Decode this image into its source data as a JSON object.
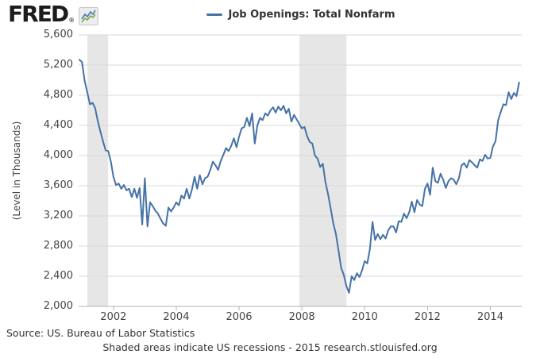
{
  "header": {
    "logo_text": "FRED",
    "logo_reg_mark": "®",
    "legend": {
      "label": "Job Openings: Total Nonfarm"
    }
  },
  "footer": {
    "source": "Source: US. Bureau of Labor Statistics",
    "note": "Shaded areas indicate US recessions - 2015 research.stlouisfed.org"
  },
  "colors": {
    "series_line": "#4572a7",
    "recession_band": "#e6e6e6",
    "gridline": "#d9d9d9",
    "axis_line": "#b3b3b3",
    "tick_mark": "#b3b3b3",
    "tick_text": "#444444",
    "footer_text": "#333333",
    "logo_blue": "#4a78b3",
    "logo_green": "#7fa54c"
  },
  "chart_data": {
    "type": "line",
    "title": "Job Openings: Total Nonfarm",
    "xlabel": "",
    "ylabel": "(Level in Thousands)",
    "units": "thousands",
    "frequency": "monthly",
    "start_period": "2000-12",
    "end_period": "2014-12",
    "x_start": 2000.9167,
    "x_step_years": 0.0833333,
    "x_range": [
      2000.9167,
      2015.0
    ],
    "ylim": [
      2000,
      5600
    ],
    "grid": "horizontal",
    "legend_position": "top-center",
    "y_ticks": [
      {
        "value": 2000,
        "label": "2,000"
      },
      {
        "value": 2400,
        "label": "2,400"
      },
      {
        "value": 2800,
        "label": "2,800"
      },
      {
        "value": 3200,
        "label": "3,200"
      },
      {
        "value": 3600,
        "label": "3,600"
      },
      {
        "value": 4000,
        "label": "4,000"
      },
      {
        "value": 4400,
        "label": "4,400"
      },
      {
        "value": 4800,
        "label": "4,800"
      },
      {
        "value": 5200,
        "label": "5,200"
      },
      {
        "value": 5600,
        "label": "5,600"
      }
    ],
    "x_ticks": [
      {
        "value": 2002,
        "label": "2002"
      },
      {
        "value": 2004,
        "label": "2004"
      },
      {
        "value": 2006,
        "label": "2006"
      },
      {
        "value": 2008,
        "label": "2008"
      },
      {
        "value": 2010,
        "label": "2010"
      },
      {
        "value": 2012,
        "label": "2012"
      },
      {
        "value": 2014,
        "label": "2014"
      }
    ],
    "recession_bands": [
      {
        "start": 2001.17,
        "end": 2001.83
      },
      {
        "start": 2007.92,
        "end": 2009.42
      }
    ],
    "series": [
      {
        "name": "Job Openings: Total Nonfarm",
        "color": "#4572a7",
        "values": [
          5270,
          5240,
          4990,
          4840,
          4680,
          4700,
          4630,
          4460,
          4320,
          4190,
          4070,
          4060,
          3920,
          3720,
          3610,
          3630,
          3560,
          3610,
          3540,
          3560,
          3450,
          3560,
          3440,
          3570,
          3085,
          3700,
          3060,
          3380,
          3330,
          3270,
          3230,
          3160,
          3100,
          3070,
          3310,
          3260,
          3310,
          3380,
          3340,
          3470,
          3430,
          3560,
          3430,
          3550,
          3720,
          3560,
          3740,
          3620,
          3700,
          3720,
          3810,
          3920,
          3870,
          3810,
          3930,
          4010,
          4100,
          4060,
          4130,
          4230,
          4110,
          4250,
          4360,
          4380,
          4500,
          4390,
          4560,
          4160,
          4400,
          4500,
          4470,
          4560,
          4530,
          4600,
          4640,
          4570,
          4650,
          4600,
          4660,
          4560,
          4620,
          4450,
          4540,
          4480,
          4420,
          4360,
          4380,
          4260,
          4180,
          4160,
          4000,
          3960,
          3850,
          3890,
          3650,
          3490,
          3300,
          3100,
          2960,
          2740,
          2510,
          2420,
          2270,
          2180,
          2400,
          2350,
          2440,
          2390,
          2480,
          2600,
          2570,
          2760,
          3120,
          2880,
          2960,
          2890,
          2950,
          2900,
          3010,
          3060,
          3060,
          2980,
          3130,
          3120,
          3230,
          3170,
          3250,
          3390,
          3250,
          3410,
          3350,
          3330,
          3560,
          3630,
          3480,
          3840,
          3660,
          3640,
          3760,
          3680,
          3570,
          3660,
          3700,
          3680,
          3620,
          3700,
          3870,
          3900,
          3840,
          3940,
          3910,
          3870,
          3840,
          3950,
          3930,
          4010,
          3960,
          3970,
          4120,
          4190,
          4470,
          4580,
          4680,
          4670,
          4840,
          4750,
          4830,
          4790,
          4970
        ]
      }
    ]
  }
}
